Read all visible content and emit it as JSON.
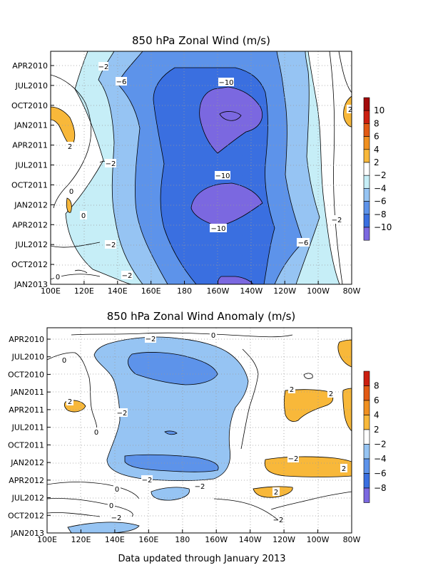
{
  "chart_data": [
    {
      "type": "heatmap",
      "title": "850 hPa Zonal Wind (m/s)",
      "x_tick_labels": [
        "100E",
        "120E",
        "140E",
        "160E",
        "180",
        "160W",
        "140W",
        "120W",
        "100W",
        "80W"
      ],
      "y_tick_labels": [
        "APR2010",
        "JUL2010",
        "OCT2010",
        "JAN2011",
        "APR2011",
        "JUL2011",
        "OCT2011",
        "JAN2012",
        "APR2012",
        "JUL2012",
        "OCT2012",
        "JAN2013"
      ],
      "xlim": [
        "100E",
        "80W"
      ],
      "ylim": [
        "JAN2013",
        "APR2010"
      ],
      "grid": true,
      "colorbar_levels": [
        10,
        8,
        6,
        4,
        2,
        -2,
        -4,
        -6,
        -8,
        -10
      ],
      "colors": {
        "neg10": "#7b68e0",
        "neg8": "#3a6fe0",
        "neg6": "#5d93ea",
        "neg4": "#96c4f3",
        "neg2": "#c6eef7",
        "pos2": "#ffffff",
        "pos4": "#f8b83a",
        "pos6": "#f09020",
        "pos8": "#e25a14",
        "pos10": "#cc1f10",
        "pos12": "#a30a0a"
      },
      "contour_labels": [
        "-2",
        "-6",
        "-10",
        "2",
        "-2",
        "-10",
        "0",
        "0",
        "-10",
        "-2",
        "-2",
        "-6",
        "-2",
        "0",
        "2"
      ]
    },
    {
      "type": "heatmap",
      "title": "850 hPa Zonal Wind Anomaly (m/s)",
      "x_tick_labels": [
        "100E",
        "120E",
        "140E",
        "160E",
        "180",
        "160W",
        "140W",
        "120W",
        "100W",
        "80W"
      ],
      "y_tick_labels": [
        "APR2010",
        "JUL2010",
        "OCT2010",
        "JAN2011",
        "APR2011",
        "JUL2011",
        "OCT2011",
        "JAN2012",
        "APR2012",
        "JUL2012",
        "OCT2012",
        "JAN2013"
      ],
      "xlim": [
        "100E",
        "80W"
      ],
      "ylim": [
        "JAN2013",
        "APR2010"
      ],
      "grid": true,
      "colorbar_levels": [
        8,
        6,
        4,
        2,
        -2,
        -4,
        -6,
        -8
      ],
      "colors": {
        "neg8": "#7b68e0",
        "neg6": "#3a6fe0",
        "neg4": "#5d93ea",
        "neg2": "#96c4f3",
        "pos2": "#ffffff",
        "pos4": "#f8b83a",
        "pos6": "#f09020",
        "pos8": "#e25a14",
        "pos10": "#cc1f10"
      },
      "contour_labels": [
        "-2",
        "0",
        "0",
        "-2",
        "2",
        "2",
        "2",
        "-2",
        "0",
        "-2",
        "-2",
        "-2",
        "2",
        "2",
        "0",
        "0",
        "-2",
        "0",
        "-2"
      ]
    }
  ],
  "footer": "Data updated through January 2013"
}
